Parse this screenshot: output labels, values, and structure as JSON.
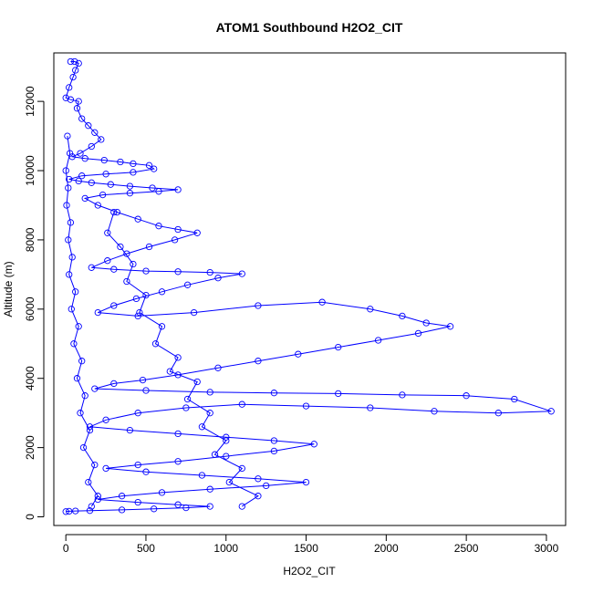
{
  "chart_data": {
    "type": "scatter",
    "title": "ATOM1 Southbound H2O2_CIT",
    "xlabel": "H2O2_CIT",
    "ylabel": "Altitude (m)",
    "xlim": [
      -75,
      3120
    ],
    "ylim": [
      -250,
      13400
    ],
    "xticks": [
      "0",
      "500",
      "1000",
      "1500",
      "2000",
      "2500",
      "3000"
    ],
    "xtick_values": [
      0,
      500,
      1000,
      1500,
      2000,
      2500,
      3000
    ],
    "yticks": [
      "0",
      "2000",
      "4000",
      "6000",
      "8000",
      "10000",
      "12000"
    ],
    "ytick_values": [
      0,
      2000,
      4000,
      6000,
      8000,
      10000,
      12000
    ],
    "point_style": "open-circle, connected by lines",
    "color": "#0000ff",
    "series": [
      {
        "values": [
          [
            30,
            13150
          ],
          [
            55,
            13150
          ],
          [
            80,
            13100
          ],
          [
            60,
            12900
          ],
          [
            45,
            12700
          ],
          [
            20,
            12400
          ],
          [
            0,
            12100
          ],
          [
            30,
            12050
          ],
          [
            80,
            12000
          ],
          [
            70,
            11800
          ],
          [
            100,
            11500
          ],
          [
            140,
            11300
          ],
          [
            180,
            11100
          ],
          [
            220,
            10900
          ],
          [
            160,
            10700
          ],
          [
            90,
            10500
          ],
          [
            40,
            10400
          ],
          [
            120,
            10350
          ],
          [
            240,
            10300
          ],
          [
            340,
            10250
          ],
          [
            420,
            10200
          ],
          [
            520,
            10150
          ],
          [
            550,
            10050
          ],
          [
            420,
            9950
          ],
          [
            250,
            9900
          ],
          [
            100,
            9850
          ],
          [
            20,
            9750
          ],
          [
            80,
            9700
          ],
          [
            160,
            9650
          ],
          [
            280,
            9600
          ],
          [
            400,
            9550
          ],
          [
            540,
            9500
          ],
          [
            700,
            9450
          ],
          [
            580,
            9400
          ],
          [
            400,
            9350
          ],
          [
            230,
            9300
          ],
          [
            120,
            9200
          ],
          [
            200,
            9000
          ],
          [
            320,
            8800
          ],
          [
            450,
            8600
          ],
          [
            580,
            8400
          ],
          [
            700,
            8300
          ],
          [
            820,
            8200
          ],
          [
            680,
            8000
          ],
          [
            520,
            7800
          ],
          [
            380,
            7600
          ],
          [
            260,
            7400
          ],
          [
            160,
            7200
          ],
          [
            300,
            7150
          ],
          [
            500,
            7100
          ],
          [
            700,
            7080
          ],
          [
            900,
            7060
          ],
          [
            1100,
            7020
          ],
          [
            950,
            6900
          ],
          [
            760,
            6700
          ],
          [
            600,
            6500
          ],
          [
            440,
            6300
          ],
          [
            300,
            6100
          ],
          [
            200,
            5900
          ],
          [
            450,
            5800
          ],
          [
            800,
            5900
          ],
          [
            1200,
            6100
          ],
          [
            1600,
            6200
          ],
          [
            1900,
            6000
          ],
          [
            2100,
            5800
          ],
          [
            2250,
            5600
          ],
          [
            2400,
            5500
          ],
          [
            2200,
            5300
          ],
          [
            1950,
            5100
          ],
          [
            1700,
            4900
          ],
          [
            1450,
            4700
          ],
          [
            1200,
            4500
          ],
          [
            950,
            4300
          ],
          [
            700,
            4100
          ],
          [
            480,
            3950
          ],
          [
            300,
            3850
          ],
          [
            180,
            3700
          ],
          [
            500,
            3650
          ],
          [
            900,
            3600
          ],
          [
            1300,
            3580
          ],
          [
            1700,
            3560
          ],
          [
            2100,
            3520
          ],
          [
            2500,
            3500
          ],
          [
            2800,
            3400
          ],
          [
            3030,
            3050
          ],
          [
            2700,
            3000
          ],
          [
            2300,
            3050
          ],
          [
            1900,
            3150
          ],
          [
            1500,
            3200
          ],
          [
            1100,
            3250
          ],
          [
            750,
            3150
          ],
          [
            450,
            3000
          ],
          [
            250,
            2800
          ],
          [
            150,
            2600
          ],
          [
            400,
            2500
          ],
          [
            700,
            2400
          ],
          [
            1000,
            2300
          ],
          [
            1300,
            2200
          ],
          [
            1550,
            2100
          ],
          [
            1300,
            1900
          ],
          [
            1000,
            1750
          ],
          [
            700,
            1600
          ],
          [
            450,
            1500
          ],
          [
            250,
            1400
          ],
          [
            500,
            1300
          ],
          [
            850,
            1200
          ],
          [
            1200,
            1100
          ],
          [
            1500,
            1000
          ],
          [
            1250,
            900
          ],
          [
            900,
            800
          ],
          [
            600,
            700
          ],
          [
            350,
            600
          ],
          [
            200,
            500
          ],
          [
            450,
            420
          ],
          [
            700,
            350
          ],
          [
            900,
            300
          ],
          [
            750,
            260
          ],
          [
            550,
            230
          ],
          [
            350,
            200
          ],
          [
            150,
            180
          ],
          [
            60,
            170
          ],
          [
            20,
            160
          ],
          [
            0,
            150
          ]
        ]
      },
      {
        "values": [
          [
            10,
            11000
          ],
          [
            25,
            10500
          ],
          [
            0,
            10000
          ],
          [
            15,
            9500
          ],
          [
            5,
            9000
          ],
          [
            30,
            8500
          ],
          [
            15,
            8000
          ],
          [
            40,
            7500
          ],
          [
            20,
            7000
          ],
          [
            60,
            6500
          ],
          [
            35,
            6000
          ],
          [
            80,
            5500
          ],
          [
            50,
            5000
          ],
          [
            100,
            4500
          ],
          [
            70,
            4000
          ],
          [
            120,
            3500
          ],
          [
            90,
            3000
          ],
          [
            150,
            2500
          ],
          [
            110,
            2000
          ],
          [
            180,
            1500
          ],
          [
            140,
            1000
          ],
          [
            200,
            600
          ],
          [
            160,
            300
          ]
        ]
      },
      {
        "values": [
          [
            300,
            8800
          ],
          [
            260,
            8200
          ],
          [
            340,
            7800
          ],
          [
            420,
            7300
          ],
          [
            380,
            6800
          ],
          [
            500,
            6400
          ],
          [
            460,
            5900
          ],
          [
            600,
            5500
          ],
          [
            560,
            5000
          ],
          [
            700,
            4600
          ],
          [
            650,
            4200
          ],
          [
            820,
            3900
          ],
          [
            760,
            3400
          ],
          [
            900,
            3000
          ],
          [
            850,
            2600
          ],
          [
            1000,
            2200
          ],
          [
            930,
            1800
          ],
          [
            1100,
            1400
          ],
          [
            1020,
            1000
          ],
          [
            1200,
            600
          ],
          [
            1100,
            300
          ]
        ]
      }
    ]
  }
}
